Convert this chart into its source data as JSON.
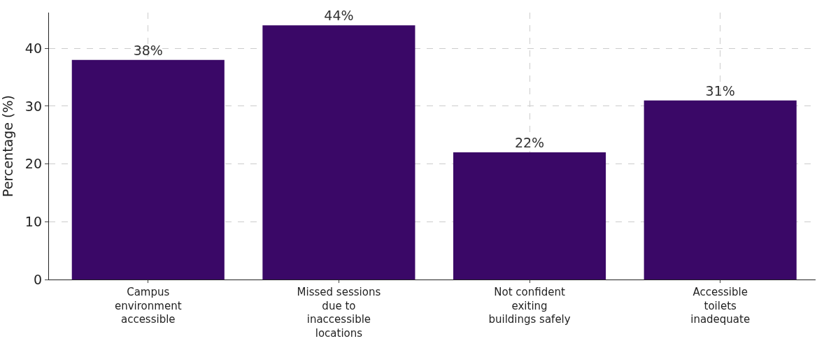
{
  "chart_data": {
    "type": "bar",
    "ylabel": "Percentage (%)",
    "categories": [
      "Campus environment accessible",
      "Missed sessions due to inaccessible locations",
      "Not confident exiting buildings safely",
      "Accessible toilets inadequate"
    ],
    "values": [
      38,
      44,
      22,
      31
    ],
    "value_labels": [
      "38%",
      "44%",
      "22%",
      "31%"
    ],
    "color": "#3a0867",
    "ylim": [
      0,
      46.2
    ],
    "yticks": [
      0,
      10,
      20,
      30,
      40
    ],
    "grid": true
  }
}
